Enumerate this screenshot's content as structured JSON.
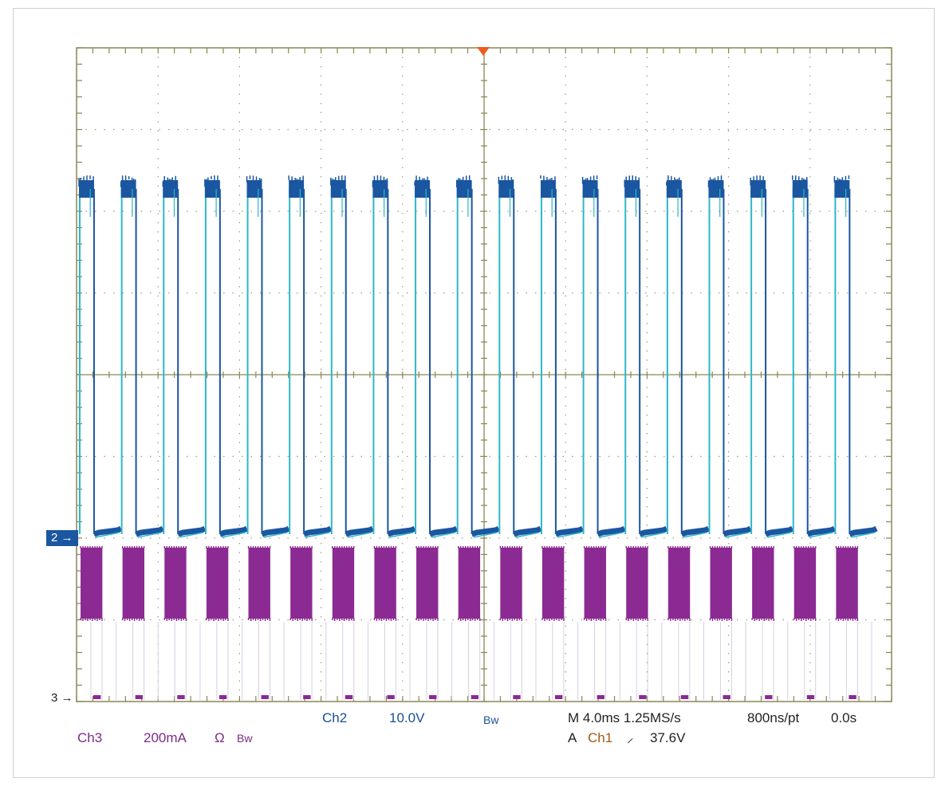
{
  "colors": {
    "grid": "#8a8656",
    "ch2": "#1b56a0",
    "ch2_edge": "#2db7c7",
    "ch3": "#8b2a92",
    "trigger": "#f05a1e",
    "ch1_text": "#a15a12"
  },
  "chart_data": {
    "type": "line",
    "title": "",
    "grid": true,
    "divisions": {
      "x": 10,
      "y": 8
    },
    "timebase_per_div_ms": 4.0,
    "x_range_ms": [
      -20,
      20
    ],
    "series": [
      {
        "name": "Ch2",
        "scale_per_div": "10.0V",
        "high_div": 4.4,
        "low_div": 0.0,
        "pulse_period_div": 0.515,
        "pulse_count": 19,
        "description_values": "square pulses ~44 V high, ~0 V low"
      },
      {
        "name": "Ch3",
        "scale_per_div": "200mA",
        "burst_amplitude_div": 0.9,
        "burst_period_div": 0.515,
        "burst_count": 19
      }
    ]
  },
  "markers": {
    "ch2": "2",
    "ch3": "3",
    "arrow": "→"
  },
  "readouts": {
    "ch2_label": "Ch2",
    "ch2_scale": "10.0V",
    "bw1": "Bw",
    "timebase": "M 4.0ms 1.25MS/s",
    "resolution": "800ns/pt",
    "offset": "0.0s",
    "ch3_label": "Ch3",
    "ch3_scale": "200mA",
    "ohm": "Ω",
    "bw2": "Bw",
    "trigger_mode": "A",
    "trigger_source": "Ch1",
    "trigger_slope": "⸝",
    "trigger_level": "37.6V"
  }
}
